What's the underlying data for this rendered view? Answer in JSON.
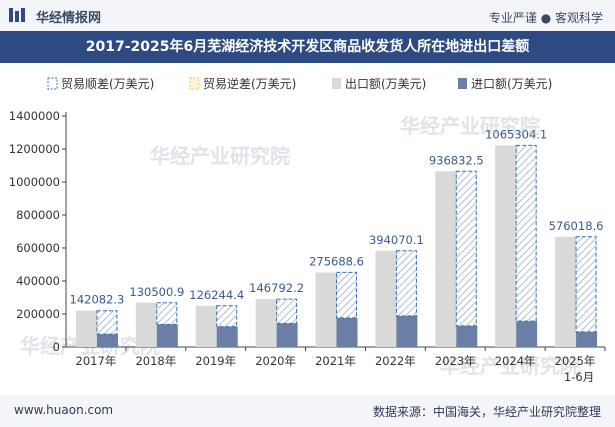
{
  "header": {
    "brand": "华经情报网",
    "slogan": "专业严谨 ● 客观科学",
    "title": "2017-2025年6月芜湖经济技术开发区商品收发货人所在地进出口差额"
  },
  "footer": {
    "url": "www.huaon.com",
    "source": "数据来源：中国海关，华经产业研究院整理"
  },
  "watermark": "华经产业研究院",
  "colors": {
    "export": "#d9d9d9",
    "import": "#6b7fa6",
    "surplus_stroke": "#3a6fb0",
    "deficit_stroke": "#e8c45a",
    "title_bg": "#2e4a82"
  },
  "chart_data": {
    "type": "bar",
    "categories": [
      "2017年",
      "2018年",
      "2019年",
      "2020年",
      "2021年",
      "2022年",
      "2023年",
      "2024年",
      "2025年\n1-6月"
    ],
    "series": [
      {
        "name": "贸易顺差(万美元)",
        "values": [
          142082.3,
          130500.9,
          126244.4,
          146792.2,
          275688.6,
          394070.1,
          936832.5,
          1065304.1,
          576018.6
        ]
      },
      {
        "name": "贸易逆差(万美元)",
        "values": [
          0,
          0,
          0,
          0,
          0,
          0,
          0,
          0,
          0
        ]
      },
      {
        "name": "出口额(万美元)",
        "values": [
          220000,
          268000,
          250000,
          290000,
          452000,
          583000,
          1065000,
          1222000,
          668000
        ]
      },
      {
        "name": "进口额(万美元)",
        "values": [
          78000,
          137500,
          123800,
          143200,
          176300,
          188900,
          128200,
          156700,
          92000
        ]
      }
    ],
    "data_labels": [
      "142082.3",
      "130500.9",
      "126244.4",
      "146792.2",
      "275688.6",
      "394070.1",
      "936832.5",
      "1065304.1",
      "576018.6"
    ],
    "yticks": [
      "0",
      "200000",
      "400000",
      "600000",
      "800000",
      "1000000",
      "1200000",
      "1400000"
    ],
    "ylim": [
      0,
      1400000
    ],
    "grid": false,
    "legend_position": "top"
  }
}
